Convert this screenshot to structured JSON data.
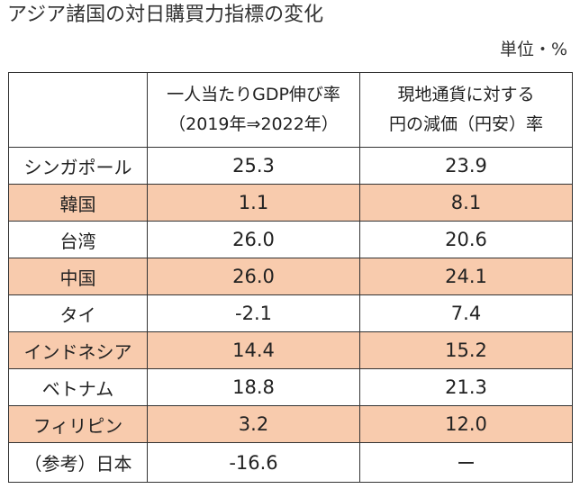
{
  "title": "アジア諸国の対日購買力指標の変化",
  "unit_note": "単位・%",
  "columns": {
    "corner": "",
    "col1_line1": "一人当たりGDP伸び率",
    "col1_line2": "（2019年⇒2022年）",
    "col2_line1": "現地通貨に対する",
    "col2_line2": "円の減価（円安）率"
  },
  "rows": [
    {
      "country": "シンガポール",
      "gdp_growth": "25.3",
      "yen_depreciation": "23.9"
    },
    {
      "country": "韓国",
      "gdp_growth": "1.1",
      "yen_depreciation": "8.1"
    },
    {
      "country": "台湾",
      "gdp_growth": "26.0",
      "yen_depreciation": "20.6"
    },
    {
      "country": "中国",
      "gdp_growth": "26.0",
      "yen_depreciation": "24.1"
    },
    {
      "country": "タイ",
      "gdp_growth": "-2.1",
      "yen_depreciation": "7.4"
    },
    {
      "country": "インドネシア",
      "gdp_growth": "14.4",
      "yen_depreciation": "15.2"
    },
    {
      "country": "ベトナム",
      "gdp_growth": "18.8",
      "yen_depreciation": "21.3"
    },
    {
      "country": "フィリピン",
      "gdp_growth": "3.2",
      "yen_depreciation": "12.0"
    },
    {
      "country": "（参考）日本",
      "gdp_growth": "-16.6",
      "yen_depreciation": "ー"
    }
  ],
  "colors": {
    "shade_row": "#f8cbad",
    "border": "#333333",
    "text": "#222222"
  }
}
